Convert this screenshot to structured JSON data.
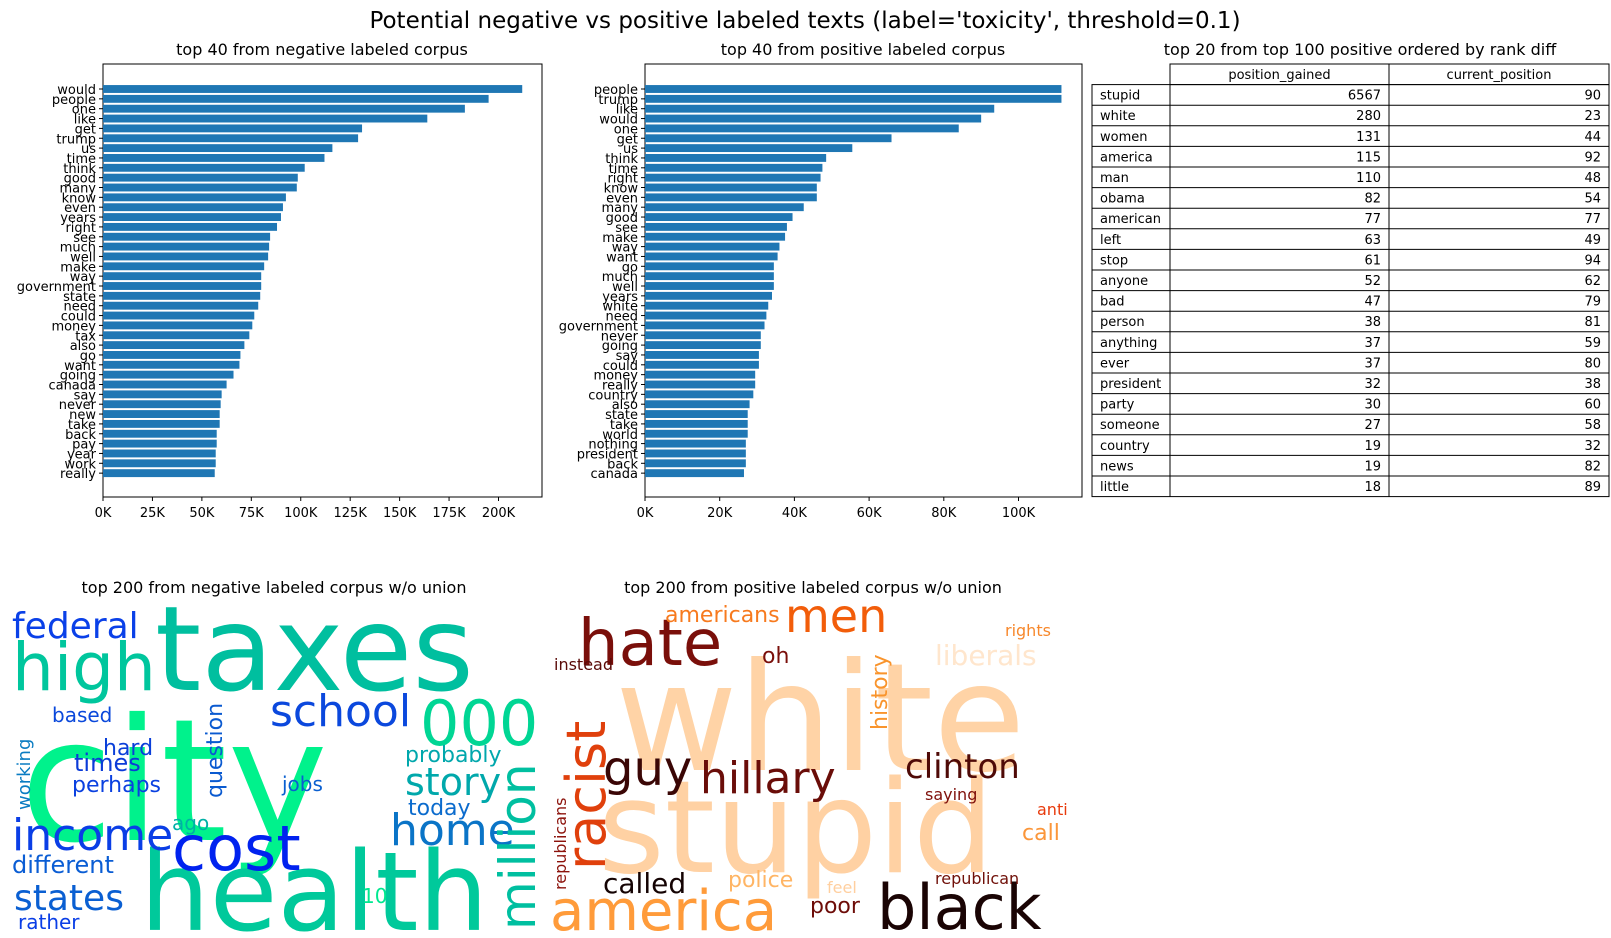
{
  "figure": {
    "suptitle": "Potential negative vs positive labeled texts (label='toxicity', threshold=0.1)"
  },
  "chart_data": [
    {
      "type": "bar",
      "orientation": "horizontal",
      "title": "top 40 from negative labeled corpus",
      "xlim": [
        0,
        222000
      ],
      "xticks": [
        0,
        25000,
        50000,
        75000,
        100000,
        125000,
        150000,
        175000,
        200000
      ],
      "xtick_labels": [
        "0K",
        "25K",
        "50K",
        "75K",
        "100K",
        "125K",
        "150K",
        "175K",
        "200K"
      ],
      "color": "#1f77b4",
      "categories": [
        "would",
        "people",
        "one",
        "like",
        "get",
        "trump",
        "us",
        "time",
        "think",
        "good",
        "many",
        "know",
        "even",
        "years",
        "right",
        "see",
        "much",
        "well",
        "make",
        "way",
        "government",
        "state",
        "need",
        "could",
        "money",
        "tax",
        "also",
        "go",
        "want",
        "going",
        "canada",
        "say",
        "never",
        "new",
        "take",
        "back",
        "pay",
        "year",
        "work",
        "really"
      ],
      "values": [
        212000,
        195000,
        183000,
        164000,
        131000,
        129000,
        116000,
        112000,
        102000,
        98500,
        98000,
        92500,
        91000,
        90000,
        88000,
        84500,
        84000,
        83500,
        81500,
        80000,
        80000,
        79500,
        78500,
        76500,
        75500,
        74000,
        71500,
        69500,
        69000,
        66000,
        62500,
        60000,
        59500,
        59000,
        59000,
        57500,
        57500,
        57000,
        57000,
        56500
      ]
    },
    {
      "type": "bar",
      "orientation": "horizontal",
      "title": "top 40 from positive labeled corpus",
      "xlim": [
        0,
        117000
      ],
      "xticks": [
        0,
        20000,
        40000,
        60000,
        80000,
        100000
      ],
      "xtick_labels": [
        "0K",
        "20K",
        "40K",
        "60K",
        "80K",
        "100K"
      ],
      "color": "#1f77b4",
      "categories": [
        "people",
        "trump",
        "like",
        "would",
        "one",
        "get",
        "us",
        "think",
        "time",
        "right",
        "know",
        "even",
        "many",
        "good",
        "see",
        "make",
        "way",
        "want",
        "go",
        "much",
        "well",
        "years",
        "white",
        "need",
        "government",
        "never",
        "going",
        "say",
        "could",
        "money",
        "really",
        "country",
        "also",
        "state",
        "take",
        "world",
        "nothing",
        "president",
        "back",
        "canada"
      ],
      "values": [
        111500,
        111500,
        93500,
        90000,
        84000,
        66000,
        55500,
        48500,
        47500,
        47000,
        46000,
        46000,
        42500,
        39500,
        38000,
        37500,
        36000,
        35500,
        34500,
        34500,
        34500,
        34000,
        33000,
        32500,
        32000,
        31000,
        31000,
        30500,
        30500,
        29500,
        29500,
        29000,
        28000,
        27500,
        27500,
        27500,
        27000,
        27000,
        27000,
        26500
      ]
    },
    {
      "type": "table",
      "title": "top 20 from top 100 positive ordered by rank diff",
      "columns": [
        "position_gained",
        "current_position"
      ],
      "rows": [
        {
          "label": "stupid",
          "values": [
            "6567",
            "90"
          ]
        },
        {
          "label": "white",
          "values": [
            "280",
            "23"
          ]
        },
        {
          "label": "women",
          "values": [
            "131",
            "44"
          ]
        },
        {
          "label": "america",
          "values": [
            "115",
            "92"
          ]
        },
        {
          "label": "man",
          "values": [
            "110",
            "48"
          ]
        },
        {
          "label": "obama",
          "values": [
            "82",
            "54"
          ]
        },
        {
          "label": "american",
          "values": [
            "77",
            "77"
          ]
        },
        {
          "label": "left",
          "values": [
            "63",
            "49"
          ]
        },
        {
          "label": "stop",
          "values": [
            "61",
            "94"
          ]
        },
        {
          "label": "anyone",
          "values": [
            "52",
            "62"
          ]
        },
        {
          "label": "bad",
          "values": [
            "47",
            "79"
          ]
        },
        {
          "label": "person",
          "values": [
            "38",
            "81"
          ]
        },
        {
          "label": "anything",
          "values": [
            "37",
            "59"
          ]
        },
        {
          "label": "ever",
          "values": [
            "37",
            "80"
          ]
        },
        {
          "label": "president",
          "values": [
            "32",
            "38"
          ]
        },
        {
          "label": "party",
          "values": [
            "30",
            "60"
          ]
        },
        {
          "label": "someone",
          "values": [
            "27",
            "58"
          ]
        },
        {
          "label": "country",
          "values": [
            "19",
            "32"
          ]
        },
        {
          "label": "news",
          "values": [
            "19",
            "82"
          ]
        },
        {
          "label": "little",
          "values": [
            "18",
            "89"
          ]
        }
      ]
    },
    {
      "type": "wordcloud",
      "title": "top 200 from negative labeled corpus w/o union",
      "words": [
        {
          "text": "taxes",
          "color": "#00bf9f"
        },
        {
          "text": "city",
          "color": "#00f28c"
        },
        {
          "text": "health",
          "color": "#00c99b"
        },
        {
          "text": "high",
          "color": "#00c69d"
        },
        {
          "text": "federal",
          "color": "#0a40e8"
        },
        {
          "text": "school",
          "color": "#0b48dd"
        },
        {
          "text": "000",
          "color": "#00d694"
        },
        {
          "text": "cost",
          "color": "#0022ef"
        },
        {
          "text": "income",
          "color": "#0a3ee6"
        },
        {
          "text": "home",
          "color": "#0a74c7"
        },
        {
          "text": "million",
          "color": "#00bfa0"
        },
        {
          "text": "story",
          "color": "#00a8ab"
        },
        {
          "text": "probably",
          "color": "#00a7ac"
        },
        {
          "text": "today",
          "color": "#0b6bcd"
        },
        {
          "text": "states",
          "color": "#0a5fd2"
        },
        {
          "text": "different",
          "color": "#0a5dd4"
        },
        {
          "text": "times",
          "color": "#0b3bd8"
        },
        {
          "text": "perhaps",
          "color": "#0a40e0"
        },
        {
          "text": "hard",
          "color": "#0a3fd9"
        },
        {
          "text": "based",
          "color": "#0a48db"
        },
        {
          "text": "question",
          "color": "#0a5ad0"
        },
        {
          "text": "jobs",
          "color": "#0a5fd0"
        },
        {
          "text": "working",
          "color": "#0a7cc2"
        },
        {
          "text": "ago",
          "color": "#00b0a6"
        },
        {
          "text": "rather",
          "color": "#0a3ee6"
        },
        {
          "text": "10",
          "color": "#00e890"
        }
      ]
    },
    {
      "type": "wordcloud",
      "title": "top 200 from positive labeled corpus w/o union",
      "words": [
        {
          "text": "white",
          "color": "#ffd3a6"
        },
        {
          "text": "stupid",
          "color": "#ffd1a3"
        },
        {
          "text": "hate",
          "color": "#7a0f0a"
        },
        {
          "text": "men",
          "color": "#f25d0a"
        },
        {
          "text": "americans",
          "color": "#f77a1e"
        },
        {
          "text": "racist",
          "color": "#e0400c"
        },
        {
          "text": "guy",
          "color": "#3a0605"
        },
        {
          "text": "hillary",
          "color": "#6a0d09"
        },
        {
          "text": "clinton",
          "color": "#4f0a07"
        },
        {
          "text": "america",
          "color": "#ff9b3a"
        },
        {
          "text": "black",
          "color": "#1a0404"
        },
        {
          "text": "called",
          "color": "#140303"
        },
        {
          "text": "police",
          "color": "#ffb565"
        },
        {
          "text": "poor",
          "color": "#6d0c08"
        },
        {
          "text": "liberals",
          "color": "#ffe6cd"
        },
        {
          "text": "history",
          "color": "#f9942c"
        },
        {
          "text": "oh",
          "color": "#7a0f0a"
        },
        {
          "text": "instead",
          "color": "#5a0b08"
        },
        {
          "text": "rights",
          "color": "#f7882c"
        },
        {
          "text": "saying",
          "color": "#7f100b"
        },
        {
          "text": "anti",
          "color": "#e83a0c"
        },
        {
          "text": "call",
          "color": "#fb963a"
        },
        {
          "text": "republican",
          "color": "#701009"
        },
        {
          "text": "republicans",
          "color": "#8c120b"
        },
        {
          "text": "feel",
          "color": "#ffcf9f"
        }
      ]
    }
  ]
}
